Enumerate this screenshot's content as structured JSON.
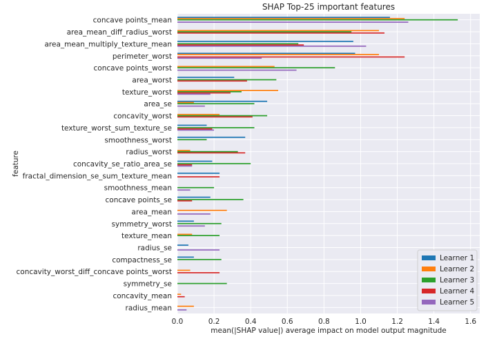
{
  "chart_data": {
    "type": "bar",
    "orientation": "horizontal",
    "title": "SHAP Top-25 important features",
    "xlabel": "mean(|SHAP value|) average impact on model output magnitude",
    "ylabel": "feature",
    "xlim": [
      0,
      1.65
    ],
    "xticks": [
      "0.0",
      "0.2",
      "0.4",
      "0.6",
      "0.8",
      "1.0",
      "1.2",
      "1.4",
      "1.6"
    ],
    "grid": true,
    "legend_position": "lower-right",
    "categories": [
      "concave points_mean",
      "area_mean_diff_radius_worst",
      "area_mean_multiply_texture_mean",
      "perimeter_worst",
      "concave points_worst",
      "area_worst",
      "texture_worst",
      "area_se",
      "concavity_worst",
      "texture_worst_sum_texture_se",
      "smoothness_worst",
      "radius_worst",
      "concavity_se_ratio_area_se",
      "fractal_dimension_se_sum_texture_mean",
      "smoothness_mean",
      "concave points_se",
      "area_mean",
      "symmetry_worst",
      "texture_mean",
      "radius_se",
      "compactness_se",
      "concavity_worst_diff_concave points_worst",
      "symmetry_se",
      "concavity_mean",
      "radius_mean"
    ],
    "series": [
      {
        "name": "Learner 1",
        "color": "#1f77b4",
        "values": [
          1.16,
          0.0,
          0.96,
          0.97,
          0.0,
          0.31,
          0.0,
          0.49,
          0.0,
          0.16,
          0.37,
          0.0,
          0.19,
          0.23,
          0.0,
          0.18,
          0.0,
          0.09,
          0.0,
          0.06,
          0.09,
          0.0,
          0.0,
          0.0,
          0.0
        ]
      },
      {
        "name": "Learner 2",
        "color": "#ff7f0e",
        "values": [
          1.24,
          1.1,
          0.0,
          1.1,
          0.53,
          0.0,
          0.55,
          0.09,
          0.23,
          0.0,
          0.0,
          0.07,
          0.0,
          0.0,
          0.0,
          0.0,
          0.27,
          0.0,
          0.08,
          0.0,
          0.0,
          0.07,
          0.0,
          0.02,
          0.09
        ]
      },
      {
        "name": "Learner 3",
        "color": "#2ca02c",
        "values": [
          1.53,
          0.95,
          0.66,
          0.0,
          0.86,
          0.54,
          0.35,
          0.42,
          0.49,
          0.42,
          0.16,
          0.33,
          0.4,
          0.0,
          0.2,
          0.36,
          0.0,
          0.24,
          0.23,
          0.0,
          0.24,
          0.0,
          0.27,
          0.0,
          0.0
        ]
      },
      {
        "name": "Learner 4",
        "color": "#d62728",
        "values": [
          0.0,
          1.13,
          0.69,
          1.24,
          0.0,
          0.38,
          0.29,
          0.0,
          0.41,
          0.19,
          0.0,
          0.37,
          0.08,
          0.23,
          0.0,
          0.08,
          0.0,
          0.0,
          0.0,
          0.0,
          0.0,
          0.23,
          0.0,
          0.04,
          0.0
        ]
      },
      {
        "name": "Learner 5",
        "color": "#9467bd",
        "values": [
          1.26,
          0.0,
          1.03,
          0.46,
          0.65,
          0.0,
          0.18,
          0.15,
          0.0,
          0.2,
          0.0,
          0.0,
          0.08,
          0.0,
          0.07,
          0.0,
          0.18,
          0.15,
          0.0,
          0.23,
          0.0,
          0.0,
          0.0,
          0.0,
          0.05
        ]
      }
    ]
  }
}
